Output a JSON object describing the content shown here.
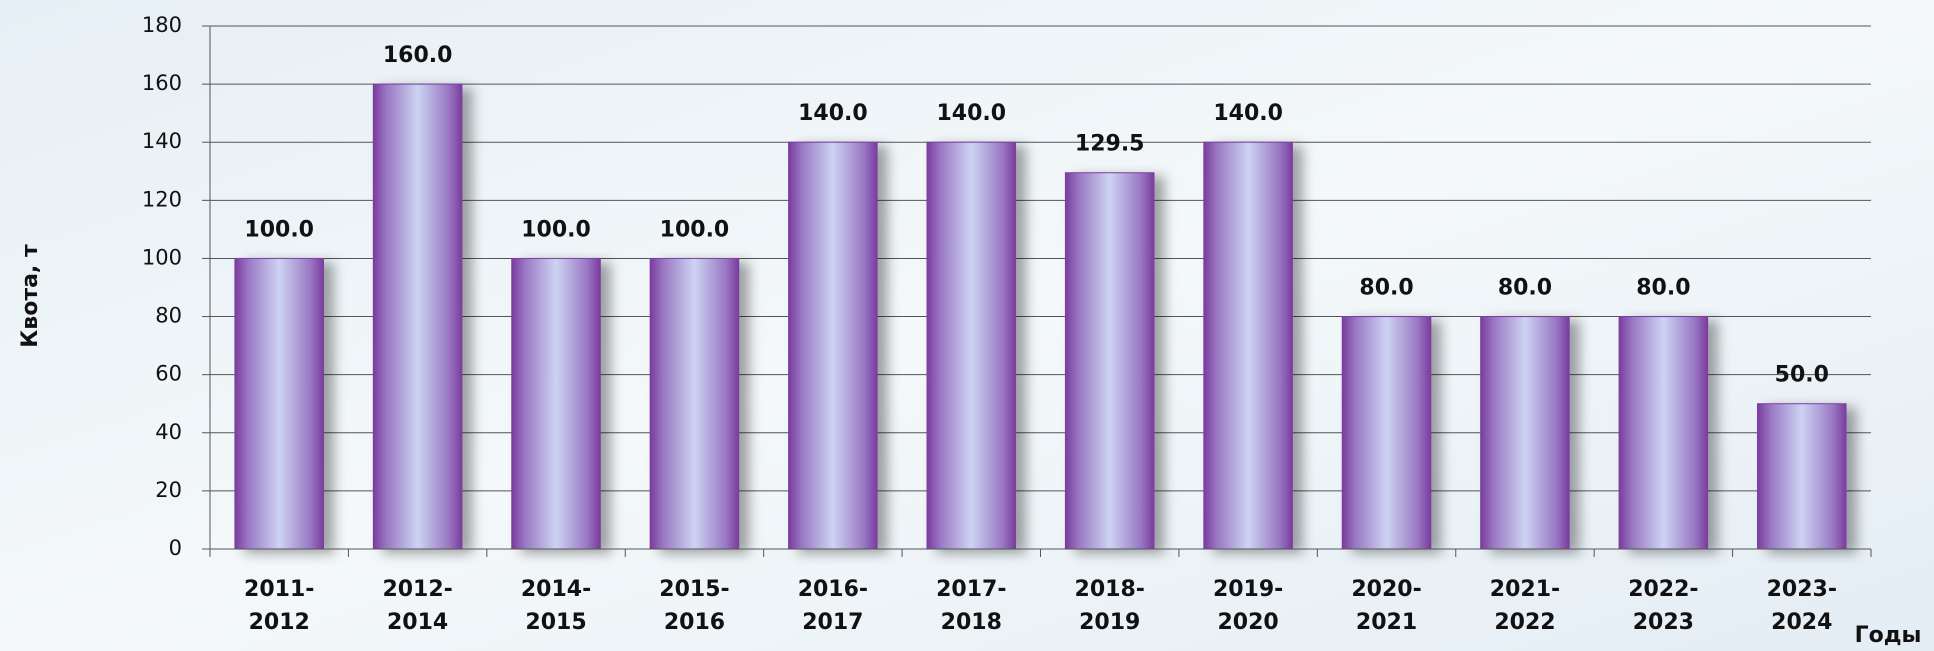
{
  "chart_data": {
    "type": "bar",
    "y_label": "Квота, т",
    "x_label": "Годы",
    "categories": [
      "2011-2012",
      "2012-2014",
      "2014-2015",
      "2015-2016",
      "2016-2017",
      "2017-2018",
      "2018-2019",
      "2019-2020",
      "2020-2021",
      "2021-2022",
      "2022-2023",
      "2023-2024"
    ],
    "values": [
      100,
      160,
      100,
      100,
      140,
      140,
      129.5,
      140,
      80,
      80,
      80,
      50
    ],
    "value_labels": [
      "100.0",
      "160.0",
      "100.0",
      "100.0",
      "140.0",
      "140.0",
      "129.5",
      "140.0",
      "80.0",
      "80.0",
      "80.0",
      "50.0"
    ],
    "color": "#7b3fa0",
    "ylim": [
      0,
      180
    ],
    "yticks": [
      0,
      20,
      40,
      60,
      80,
      100,
      120,
      140,
      160,
      180
    ],
    "grid": true
  }
}
